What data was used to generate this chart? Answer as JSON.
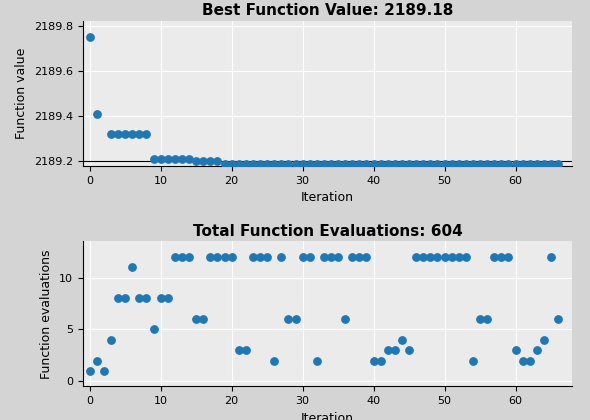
{
  "title1": "Best Function Value: 2189.18",
  "title2": "Total Function Evaluations: 604",
  "xlabel": "Iteration",
  "ylabel1": "Function value",
  "ylabel2": "Function evaluations",
  "dot_color": "#1f77b4",
  "fig_facecolor": "#d4d4d4",
  "axes_facecolor": "#ebebeb",
  "scatter1_x": [
    0,
    1,
    3,
    4,
    5,
    6,
    7,
    8,
    9,
    10,
    11,
    12,
    13,
    14,
    15,
    16,
    17,
    18,
    19,
    20,
    21,
    22,
    23,
    24,
    25,
    26,
    27,
    28,
    29,
    30,
    31,
    32,
    33,
    34,
    35,
    36,
    37,
    38,
    39,
    40,
    41,
    42,
    43,
    44,
    45,
    46,
    47,
    48,
    49,
    50,
    51,
    52,
    53,
    54,
    55,
    56,
    57,
    58,
    59,
    60,
    61,
    62,
    63,
    64,
    65,
    66
  ],
  "scatter1_y": [
    2189.75,
    2189.41,
    2189.32,
    2189.32,
    2189.32,
    2189.32,
    2189.32,
    2189.32,
    2189.21,
    2189.21,
    2189.21,
    2189.21,
    2189.21,
    2189.21,
    2189.2,
    2189.2,
    2189.2,
    2189.2,
    2189.19,
    2189.19,
    2189.19,
    2189.19,
    2189.19,
    2189.19,
    2189.19,
    2189.19,
    2189.19,
    2189.19,
    2189.19,
    2189.19,
    2189.19,
    2189.19,
    2189.19,
    2189.19,
    2189.19,
    2189.19,
    2189.19,
    2189.19,
    2189.19,
    2189.19,
    2189.19,
    2189.19,
    2189.19,
    2189.19,
    2189.19,
    2189.19,
    2189.19,
    2189.19,
    2189.19,
    2189.19,
    2189.19,
    2189.19,
    2189.19,
    2189.19,
    2189.19,
    2189.19,
    2189.19,
    2189.19,
    2189.19,
    2189.19,
    2189.19,
    2189.19,
    2189.19,
    2189.19,
    2189.19,
    2189.19
  ],
  "scatter2_x": [
    0,
    1,
    2,
    3,
    4,
    5,
    6,
    7,
    8,
    9,
    10,
    11,
    12,
    13,
    14,
    15,
    16,
    17,
    18,
    19,
    20,
    21,
    22,
    23,
    24,
    25,
    26,
    27,
    28,
    29,
    30,
    31,
    32,
    33,
    34,
    35,
    36,
    37,
    38,
    39,
    40,
    41,
    42,
    43,
    44,
    45,
    46,
    47,
    48,
    49,
    50,
    51,
    52,
    53,
    54,
    55,
    56,
    57,
    58,
    59,
    60,
    61,
    62,
    63,
    64,
    65,
    66
  ],
  "scatter2_y": [
    1,
    2,
    1,
    4,
    8,
    8,
    11,
    8,
    8,
    5,
    8,
    8,
    12,
    12,
    12,
    6,
    6,
    12,
    12,
    12,
    12,
    3,
    3,
    12,
    12,
    12,
    2,
    12,
    6,
    6,
    12,
    12,
    2,
    12,
    12,
    12,
    6,
    12,
    12,
    12,
    2,
    2,
    3,
    3,
    4,
    3,
    12,
    12,
    12,
    12,
    12,
    12,
    12,
    12,
    2,
    6,
    6,
    12,
    12,
    12,
    3,
    2,
    2,
    3,
    4,
    12,
    6
  ],
  "ylim1": [
    2189.18,
    2189.82
  ],
  "ylim2": [
    -0.5,
    13.5
  ],
  "xlim": [
    -1,
    68
  ],
  "yticks1": [
    2189.2,
    2189.4,
    2189.6,
    2189.8
  ],
  "yticks2": [
    0,
    5,
    10
  ],
  "xticks": [
    0,
    10,
    20,
    30,
    40,
    50,
    60
  ],
  "marker_size": 28,
  "title_fontsize": 11,
  "label_fontsize": 9,
  "tick_fontsize": 8,
  "hline_y": 2189.2,
  "hline_color": "black",
  "hline_lw": 0.8,
  "grid_color": "white",
  "grid_lw": 0.8
}
